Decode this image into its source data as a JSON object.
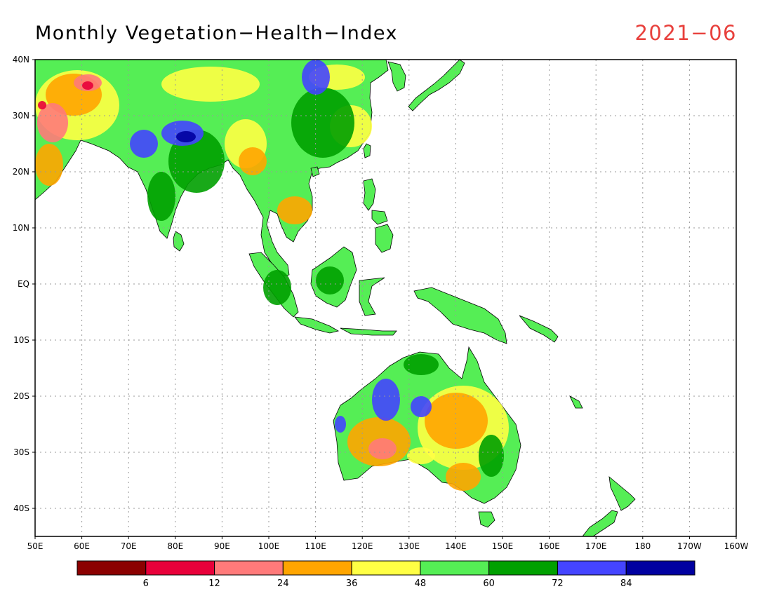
{
  "title": "Monthly Vegetation−Health−Index",
  "date": "2021−06",
  "date_color": "#e8403c",
  "lat_labels": [
    "40N",
    "30N",
    "20N",
    "10N",
    "EQ",
    "10S",
    "20S",
    "30S",
    "40S"
  ],
  "lon_labels": [
    "50E",
    "60E",
    "70E",
    "80E",
    "90E",
    "100E",
    "110E",
    "120E",
    "130E",
    "140E",
    "150E",
    "160E",
    "170E",
    "180",
    "170W",
    "160W"
  ],
  "colorbar": {
    "colors": [
      "#8b0000",
      "#e8003a",
      "#ff7a7a",
      "#ffa500",
      "#ffff44",
      "#55ee55",
      "#00a000",
      "#4444ff",
      "#0000a0"
    ],
    "labels": [
      "6",
      "12",
      "24",
      "36",
      "48",
      "60",
      "72",
      "84"
    ]
  },
  "palette": {
    "green_light": "#55ee55",
    "green_dark": "#00a000",
    "yellow": "#ffff44",
    "orange": "#ffa500",
    "pink": "#ff7a7a",
    "red": "#e8003a",
    "blue": "#4444ff",
    "navy": "#0000a0"
  }
}
